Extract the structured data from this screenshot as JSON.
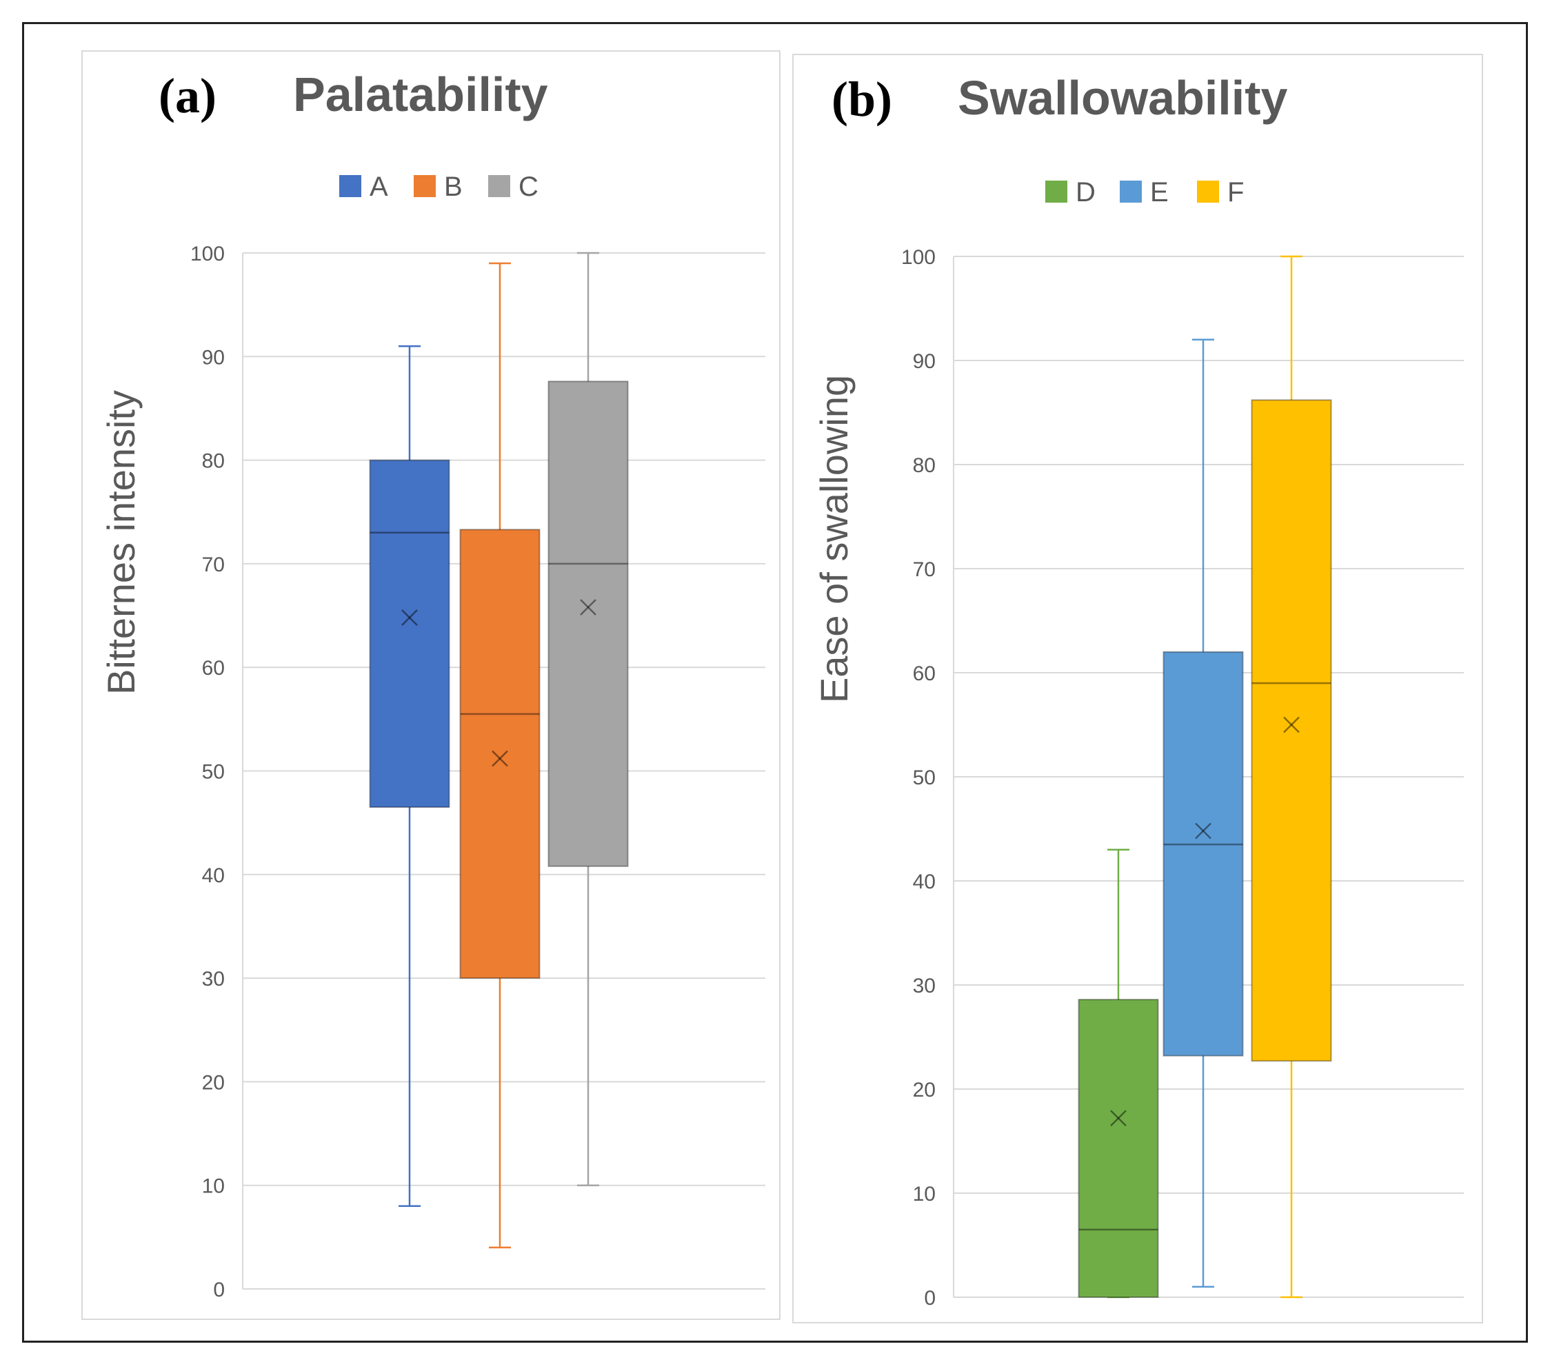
{
  "chart_data": [
    {
      "type": "boxplot",
      "panel_label": "(a)",
      "title": "Palatability",
      "ylabel": "Bitternes intensity",
      "ylim": [
        0,
        100
      ],
      "yticks": [
        "0",
        "10",
        "20",
        "30",
        "40",
        "50",
        "60",
        "70",
        "80",
        "90",
        "100"
      ],
      "grid": true,
      "legend_position": "top-center",
      "series": [
        {
          "name": "A",
          "color": "#4472C4",
          "min": 8,
          "q1": 46.5,
          "median": 73,
          "q3": 80,
          "max": 91,
          "mean": 64.8
        },
        {
          "name": "B",
          "color": "#ED7D31",
          "min": 4,
          "q1": 30,
          "median": 55.5,
          "q3": 73.3,
          "max": 99,
          "mean": 51.2
        },
        {
          "name": "C",
          "color": "#A5A5A5",
          "min": 10,
          "q1": 40.8,
          "median": 70,
          "q3": 87.6,
          "max": 100,
          "mean": 65.8
        }
      ]
    },
    {
      "type": "boxplot",
      "panel_label": "(b)",
      "title": "Swallowability",
      "ylabel": "Ease of swallowing",
      "ylim": [
        0,
        100
      ],
      "yticks": [
        "0",
        "10",
        "20",
        "30",
        "40",
        "50",
        "60",
        "70",
        "80",
        "90",
        "100"
      ],
      "grid": true,
      "legend_position": "top-center",
      "series": [
        {
          "name": "D",
          "color": "#70AD47",
          "min": 0,
          "q1": 0,
          "median": 6.5,
          "q3": 28.6,
          "max": 43,
          "mean": 17.2
        },
        {
          "name": "E",
          "color": "#5B9BD5",
          "min": 1,
          "q1": 23.2,
          "median": 43.5,
          "q3": 62,
          "max": 92,
          "mean": 44.8
        },
        {
          "name": "F",
          "color": "#FFC000",
          "min": 0,
          "q1": 22.7,
          "median": 59,
          "q3": 86.2,
          "max": 100,
          "mean": 55
        }
      ]
    }
  ]
}
